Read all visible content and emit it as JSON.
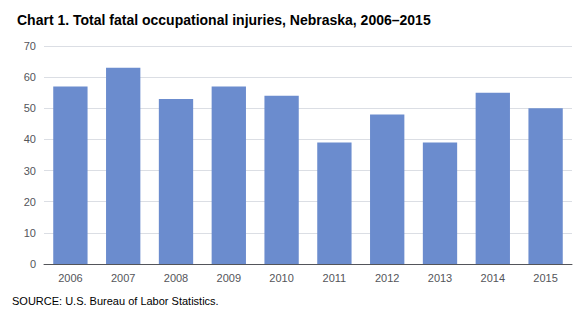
{
  "chart_data": {
    "type": "bar",
    "title": "Chart 1. Total fatal occupational injuries, Nebraska, 2006–2015",
    "categories": [
      "2006",
      "2007",
      "2008",
      "2009",
      "2010",
      "2011",
      "2012",
      "2013",
      "2014",
      "2015"
    ],
    "values": [
      57,
      63,
      53,
      57,
      54,
      39,
      48,
      39,
      55,
      50
    ],
    "color": "#6b8cce",
    "ylim": [
      0,
      70
    ],
    "yticks": [
      0,
      10,
      20,
      30,
      40,
      50,
      60,
      70
    ],
    "grid": true,
    "annotations": [
      "SOURCE: U.S. Bureau of Labor Statistics."
    ]
  }
}
